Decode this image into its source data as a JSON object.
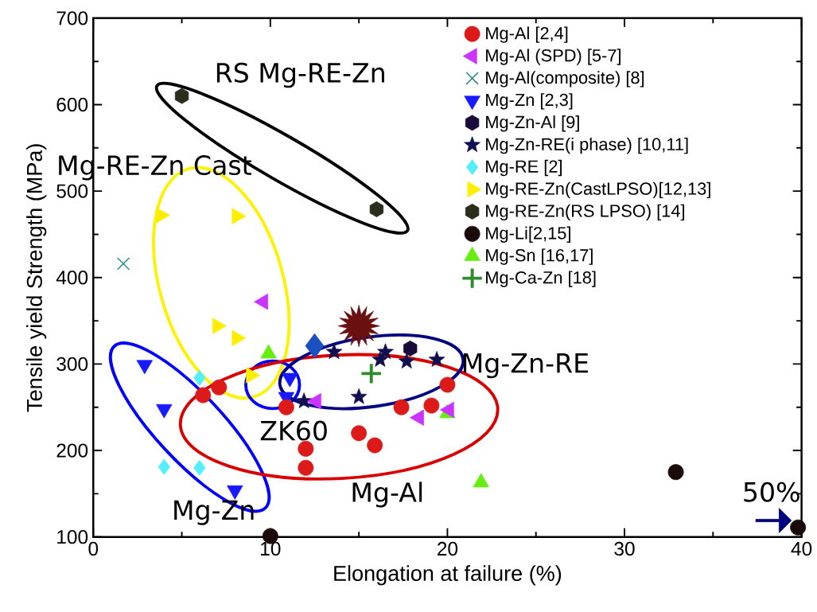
{
  "chart_data": {
    "type": "scatter",
    "xlabel": "Elongation at failure (%)",
    "ylabel": "Tensile yield Strength (MPa)",
    "xlim": [
      0,
      40
    ],
    "ylim": [
      100,
      700
    ],
    "xticks": [
      0,
      10,
      20,
      30,
      40
    ],
    "yticks": [
      100,
      200,
      300,
      400,
      500,
      600,
      700
    ],
    "legend": "top right",
    "annotations": [
      "RS Mg-RE-Zn",
      "Mg-RE-Zn Cast",
      "Mg-Zn-RE",
      "ZK60",
      "Mg-Al",
      "Mg-Zn",
      "50%"
    ],
    "series": [
      {
        "name": "Mg-Al [2,4]",
        "color": "#dd1a1a",
        "marker": "circle",
        "x": [
          6.2,
          7.1,
          10.9,
          12.0,
          12.0,
          15.0,
          15.9,
          17.4,
          19.1,
          20.0
        ],
        "values": [
          264,
          273,
          250,
          202,
          180,
          220,
          206,
          250,
          252,
          276
        ]
      },
      {
        "name": "Mg-Al (SPD) [5-7]",
        "color": "#cc33ff",
        "marker": "triangle-left",
        "x": [
          9.6,
          12.6,
          18.4,
          20.1
        ],
        "values": [
          372,
          257,
          238,
          247
        ]
      },
      {
        "name": "Mg-Al(composite) [8]",
        "color": "#2e8b8b",
        "marker": "cross",
        "x": [
          1.7
        ],
        "values": [
          416
        ]
      },
      {
        "name": "Mg-Zn [2,3]",
        "color": "#1a1aff",
        "marker": "triangle-down",
        "x": [
          2.9,
          4.0,
          8.0,
          11.1,
          10.9
        ],
        "values": [
          299,
          248,
          154,
          284,
          262
        ]
      },
      {
        "name": "Mg-Zn-Al [9]",
        "color": "#1a0a3a",
        "x": [
          17.9
        ],
        "values": [
          318
        ]
      },
      {
        "name": "Mg-Zn-RE(i phase) [10,11]",
        "color": "#101050",
        "marker": "star",
        "x": [
          11.9,
          13.6,
          15.0,
          16.2,
          16.5,
          17.7,
          19.4
        ],
        "values": [
          257,
          314,
          262,
          305,
          314,
          303,
          305
        ]
      },
      {
        "name": "Mg-RE [2]",
        "color": "#55eeff",
        "marker": "diamond",
        "x": [
          6.0,
          4.0,
          6.0
        ],
        "values": [
          284,
          181,
          180
        ]
      },
      {
        "name": "Mg-RE-Zn(CastLPSO)[12,13]",
        "color": "#ffee00",
        "marker": "triangle-right",
        "x": [
          3.8,
          8.1,
          7.0,
          8.1,
          8.9
        ],
        "values": [
          472,
          471,
          344,
          330,
          287
        ]
      },
      {
        "name": "Mg-RE-Zn(RS LPSO) [14]",
        "color": "#2a2e1a",
        "x": [
          5.0,
          16.0
        ],
        "values": [
          610,
          479
        ]
      },
      {
        "name": "Mg-Li[2,15]",
        "color": "#1a0a0a",
        "marker": "circle",
        "x": [
          10.0,
          32.9,
          39.8
        ],
        "values": [
          101,
          175,
          111
        ]
      },
      {
        "name": "Mg-Sn [16,17]",
        "color": "#66ee11",
        "marker": "triangle",
        "x": [
          9.9,
          20.0,
          21.9
        ],
        "values": [
          312,
          243,
          163
        ]
      },
      {
        "name": "Mg-Ca-Zn [18]",
        "color": "#2e8b2e",
        "marker": "plus",
        "x": [
          15.7
        ],
        "values": [
          289
        ]
      },
      {
        "color": "#1a50c0",
        "marker": "diamond",
        "x": [
          12.5
        ],
        "values": [
          321
        ]
      },
      {
        "color": "#6b1010",
        "marker": "star",
        "x": [
          15.0
        ],
        "values": [
          344
        ]
      }
    ]
  }
}
